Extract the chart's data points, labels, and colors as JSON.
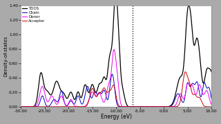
{
  "xlim": [
    -30,
    10
  ],
  "ylim": [
    0,
    1.4
  ],
  "xlabel": "Energy (eV)",
  "ylabel": "Density-of-states",
  "yticks": [
    0.0,
    0.2,
    0.4,
    0.6,
    0.8,
    1.0,
    1.2,
    1.4
  ],
  "xticks": [
    -30.0,
    -25.0,
    -20.0,
    -15.0,
    -10.0,
    -5.0,
    0.0,
    5.0,
    10.0
  ],
  "vline_x": -6.5,
  "colors": {
    "TDOS": "#000000",
    "Chain": "#0000bb",
    "Donor": "#ee00ee",
    "Acceptor": "#cc0000"
  },
  "legend_labels": [
    "TDOS",
    "Chain",
    "Donor",
    "Acceptor"
  ],
  "background_color": "#aaaaaa",
  "plot_background": "#ffffff"
}
